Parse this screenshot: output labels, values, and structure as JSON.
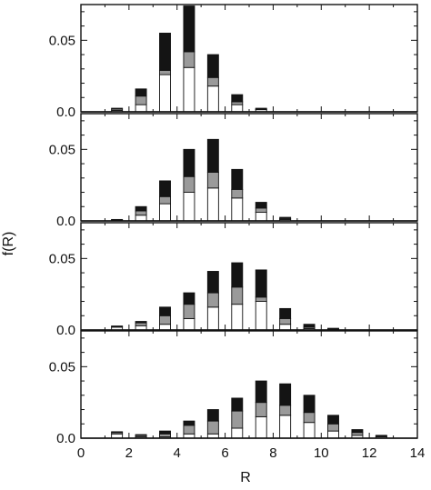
{
  "chart_data": {
    "type": "bar",
    "stacked": true,
    "shared_x_axis": true,
    "xlabel": "R",
    "ylabel": "f(R)",
    "xlim": [
      0,
      14
    ],
    "x_ticks": [
      "0",
      "2",
      "4",
      "6",
      "8",
      "10",
      "12",
      "14"
    ],
    "y_tick_labels": [
      "0.0",
      "0.05"
    ],
    "grid": false,
    "legend": "none",
    "colors": {
      "lower": "#ffffff",
      "middle": "#9a9a9a",
      "upper": "#141414",
      "frame": "#111111"
    },
    "panels": [
      {
        "ylim": [
          0,
          0.075
        ],
        "x": [
          1.5,
          2.5,
          3.5,
          4.5,
          5.5,
          6.5,
          7.5
        ],
        "series": [
          {
            "values": [
              0.001,
              0.005,
              0.026,
              0.031,
              0.018,
              0.005,
              0.0015
            ]
          },
          {
            "values": [
              0.001,
              0.006,
              0.003,
              0.011,
              0.006,
              0.002,
              0.0003
            ]
          },
          {
            "values": [
              0.0005,
              0.005,
              0.026,
              0.032,
              0.016,
              0.005,
              0.0007
            ]
          }
        ]
      },
      {
        "ylim": [
          0,
          0.075
        ],
        "x": [
          1.5,
          2.5,
          3.5,
          4.5,
          5.5,
          6.5,
          7.5,
          8.5
        ],
        "series": [
          {
            "values": [
              0.0005,
              0.004,
              0.012,
              0.02,
              0.023,
              0.016,
              0.006,
              0.001
            ]
          },
          {
            "values": [
              0.0003,
              0.003,
              0.005,
              0.011,
              0.011,
              0.006,
              0.003,
              0.0007
            ]
          },
          {
            "values": [
              0.0002,
              0.003,
              0.011,
              0.019,
              0.023,
              0.014,
              0.004,
              0.0008
            ]
          }
        ]
      },
      {
        "ylim": [
          0,
          0.075
        ],
        "x": [
          1.5,
          2.5,
          3.5,
          4.5,
          5.5,
          6.5,
          7.5,
          8.5,
          9.5,
          10.5
        ],
        "series": [
          {
            "values": [
              0.002,
              0.003,
              0.004,
              0.008,
              0.016,
              0.018,
              0.02,
              0.004,
              0.001,
              0.0005
            ]
          },
          {
            "values": [
              0.0005,
              0.002,
              0.006,
              0.01,
              0.01,
              0.012,
              0.003,
              0.004,
              0.001,
              0.0003
            ]
          },
          {
            "values": [
              0.0003,
              0.001,
              0.006,
              0.008,
              0.015,
              0.017,
              0.019,
              0.007,
              0.002,
              0.0004
            ]
          }
        ]
      },
      {
        "ylim": [
          0,
          0.075
        ],
        "x": [
          1.5,
          2.5,
          3.5,
          4.5,
          5.5,
          6.5,
          7.5,
          8.5,
          9.5,
          10.5,
          11.5,
          12.5
        ],
        "series": [
          {
            "values": [
              0.003,
              0.001,
              0.001,
              0.003,
              0.003,
              0.007,
              0.015,
              0.016,
              0.011,
              0.005,
              0.002,
              0.001
            ]
          },
          {
            "values": [
              0.001,
              0.001,
              0.002,
              0.006,
              0.009,
              0.012,
              0.01,
              0.007,
              0.007,
              0.005,
              0.002,
              0.0005
            ]
          },
          {
            "values": [
              0.0005,
              0.0005,
              0.002,
              0.003,
              0.008,
              0.009,
              0.015,
              0.015,
              0.012,
              0.006,
              0.002,
              0.0005
            ]
          }
        ]
      }
    ]
  }
}
